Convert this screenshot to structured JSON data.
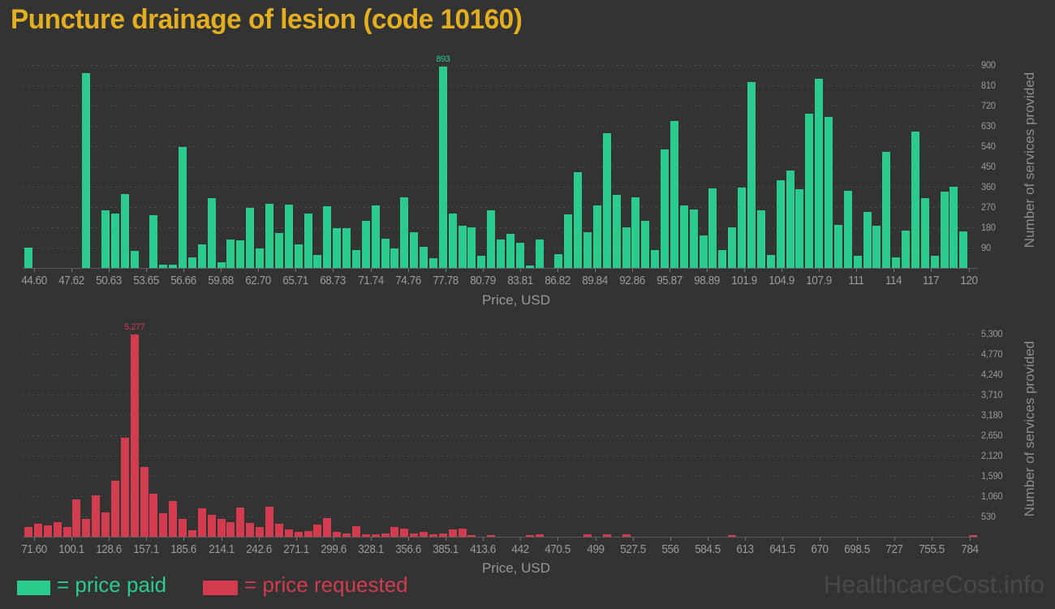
{
  "title": "Puncture drainage of lesion (code 10160)",
  "title_color": "#e3ae1f",
  "legend": {
    "paid": "= price paid",
    "requested": "= price requested"
  },
  "watermark": "HealthcareCost.info",
  "colors": {
    "paid": "#2bcb8d",
    "requested": "#d23c4e",
    "background": "#333333"
  },
  "chart_data": [
    {
      "type": "bar",
      "name": "price paid histogram",
      "series_name": "price paid",
      "color": "#2bcb8d",
      "xlabel": "Price, USD",
      "ylabel": "Number of services provided",
      "x_tick_labels": [
        "44.60",
        "47.62",
        "50.63",
        "53.65",
        "56.66",
        "59.68",
        "62.70",
        "65.71",
        "68.73",
        "71.74",
        "74.76",
        "77.78",
        "80.79",
        "83.81",
        "86.82",
        "89.84",
        "92.86",
        "95.87",
        "98.89",
        "101.9",
        "104.9",
        "107.9",
        "111",
        "114",
        "117",
        "120"
      ],
      "y_tick_labels": [
        "90",
        "180",
        "270",
        "360",
        "450",
        "540",
        "630",
        "720",
        "810",
        "900"
      ],
      "ylim": [
        0,
        900
      ],
      "grid": true,
      "legend_position": "bottom",
      "annotation": {
        "text": "893",
        "index": 43
      },
      "values": [
        90,
        0,
        0,
        0,
        0,
        0,
        865,
        0,
        256,
        242,
        329,
        77,
        0,
        233,
        15,
        14,
        536,
        48,
        104,
        308,
        24,
        126,
        124,
        266,
        87,
        284,
        155,
        279,
        104,
        242,
        58,
        274,
        176,
        176,
        79,
        209,
        278,
        130,
        86,
        313,
        158,
        95,
        43,
        893,
        240,
        188,
        180,
        53,
        256,
        125,
        151,
        113,
        12,
        126,
        0,
        62,
        238,
        425,
        160,
        278,
        598,
        324,
        180,
        314,
        208,
        78,
        527,
        652,
        278,
        259,
        143,
        352,
        80,
        181,
        355,
        824,
        256,
        58,
        388,
        431,
        350,
        684,
        838,
        668,
        190,
        342,
        54,
        248,
        186,
        516,
        46,
        166,
        604,
        311,
        55,
        340,
        359,
        163
      ]
    },
    {
      "type": "bar",
      "name": "price requested histogram",
      "series_name": "price requested",
      "color": "#d23c4e",
      "xlabel": "Price, USD",
      "ylabel": "Number of services provided",
      "x_tick_labels": [
        "71.60",
        "100.1",
        "128.6",
        "157.1",
        "185.6",
        "214.1",
        "242.6",
        "271.1",
        "299.6",
        "328.1",
        "356.6",
        "385.1",
        "413.6",
        "442",
        "470.5",
        "499",
        "527.5",
        "556",
        "584.5",
        "613",
        "641.5",
        "670",
        "698.5",
        "727",
        "755.5",
        "784"
      ],
      "y_tick_labels": [
        "530",
        "1,060",
        "1,590",
        "2,120",
        "2,650",
        "3,180",
        "3,710",
        "4,240",
        "4,770",
        "5,300"
      ],
      "ylim": [
        0,
        5300
      ],
      "grid": true,
      "legend_position": "bottom",
      "annotation": {
        "text": "5,277",
        "index": 11
      },
      "values": [
        245,
        349,
        287,
        377,
        257,
        983,
        467,
        1073,
        628,
        1458,
        2594,
        5277,
        1814,
        1130,
        613,
        941,
        460,
        174,
        747,
        579,
        475,
        383,
        768,
        370,
        245,
        789,
        330,
        195,
        132,
        153,
        320,
        487,
        126,
        90,
        272,
        56,
        70,
        90,
        251,
        209,
        77,
        119,
        56,
        90,
        182,
        215,
        50,
        0,
        45,
        0,
        0,
        0,
        45,
        60,
        0,
        0,
        0,
        0,
        55,
        0,
        55,
        0,
        60,
        0,
        0,
        0,
        0,
        0,
        0,
        0,
        0,
        0,
        0,
        40,
        0,
        0,
        0,
        0,
        0,
        0,
        0,
        0,
        0,
        0,
        0,
        0,
        0,
        0,
        0,
        0,
        0,
        0,
        0,
        0,
        0,
        0,
        0,
        0,
        40
      ]
    }
  ]
}
